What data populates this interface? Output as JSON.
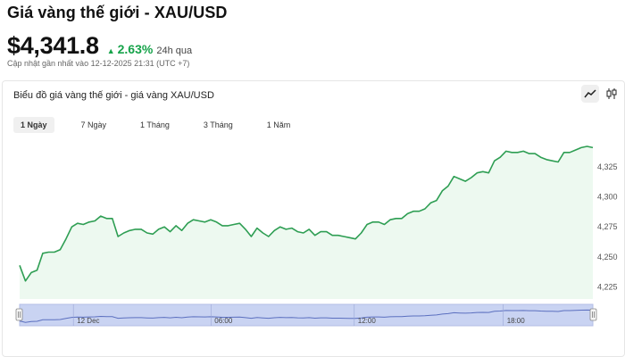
{
  "header": {
    "title": "Giá vàng thế giới - XAU/USD",
    "price": "$4,341.8",
    "change": "2.63%",
    "change_period": "24h qua",
    "updated": "Cập nhật gần nhất vào 12-12-2025 21:31 (UTC +7)"
  },
  "chart_card": {
    "title": "Biểu đồ giá vàng thế giới - giá vàng XAU/USD",
    "tabs": [
      {
        "label": "1 Ngày",
        "active": true
      },
      {
        "label": "7 Ngày",
        "active": false
      },
      {
        "label": "1 Tháng",
        "active": false
      },
      {
        "label": "3 Tháng",
        "active": false
      },
      {
        "label": "1 Năm",
        "active": false
      }
    ],
    "icons": {
      "line_view": "line-chart-icon",
      "candle_view": "candlestick-icon"
    }
  },
  "colors": {
    "accent_green": "#16a34a",
    "line": "#2e9e53",
    "area_fill": "#edf9f0",
    "navigator_fill": "#c9d3f2",
    "navigator_line": "#5b6fbf"
  },
  "chart_data": {
    "type": "area",
    "y_ticks": [
      "4,225",
      "4,250",
      "4,275",
      "4,300",
      "4,325"
    ],
    "ylim": [
      4215,
      4345
    ],
    "navigator_labels": [
      "12 Dec",
      "06:00",
      "12:00",
      "18:00"
    ],
    "values": [
      4243,
      4230,
      4237,
      4239,
      4253,
      4254,
      4254,
      4256,
      4265,
      4275,
      4278,
      4277,
      4279,
      4280,
      4284,
      4282,
      4282,
      4267,
      4270,
      4272,
      4273,
      4273,
      4270,
      4269,
      4273,
      4275,
      4271,
      4276,
      4272,
      4278,
      4281,
      4280,
      4279,
      4281,
      4279,
      4276,
      4276,
      4277,
      4278,
      4273,
      4267,
      4274,
      4270,
      4267,
      4272,
      4275,
      4273,
      4274,
      4271,
      4270,
      4273,
      4268,
      4271,
      4271,
      4268,
      4268,
      4267,
      4266,
      4265,
      4270,
      4277,
      4279,
      4279,
      4277,
      4281,
      4282,
      4282,
      4286,
      4288,
      4288,
      4290,
      4295,
      4297,
      4305,
      4309,
      4317,
      4315,
      4313,
      4316,
      4320,
      4321,
      4320,
      4330,
      4333,
      4338,
      4337,
      4337,
      4338,
      4336,
      4336,
      4333,
      4331,
      4330,
      4329,
      4337,
      4337,
      4339,
      4341,
      4342,
      4341
    ]
  }
}
